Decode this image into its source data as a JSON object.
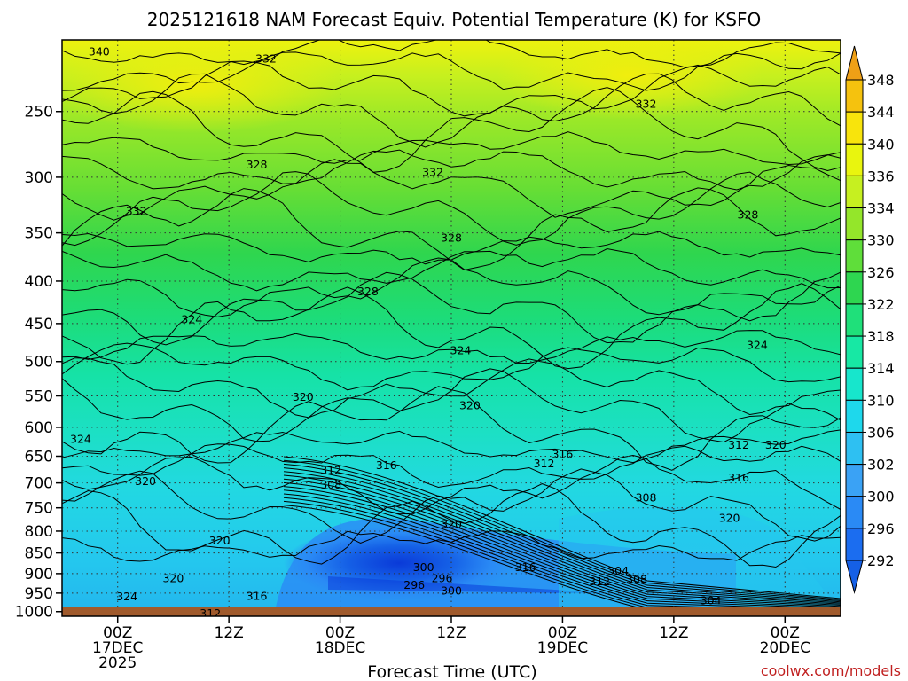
{
  "chart_data": {
    "type": "heatmap",
    "title": "2025121618 NAM Forecast Equiv. Potential Temperature (K) for KSFO",
    "xlabel": "Forecast Time (UTC)",
    "ylabel": "",
    "y_axis": {
      "ticks": [
        250,
        300,
        350,
        400,
        450,
        500,
        550,
        600,
        650,
        700,
        750,
        800,
        850,
        900,
        950,
        1000
      ],
      "ylim": [
        1013,
        205
      ],
      "scale": "log-pressure"
    },
    "x_axis": {
      "xlim": [
        "2025-12-16T18Z",
        "2025-12-20T06Z"
      ],
      "ticks": [
        {
          "x": "2025-12-17T00Z",
          "lines": [
            "00Z",
            "17DEC",
            "2025"
          ]
        },
        {
          "x": "2025-12-17T12Z",
          "lines": [
            "12Z"
          ]
        },
        {
          "x": "2025-12-18T00Z",
          "lines": [
            "00Z",
            "18DEC"
          ]
        },
        {
          "x": "2025-12-18T12Z",
          "lines": [
            "12Z"
          ]
        },
        {
          "x": "2025-12-19T00Z",
          "lines": [
            "00Z",
            "19DEC"
          ]
        },
        {
          "x": "2025-12-19T12Z",
          "lines": [
            "12Z"
          ]
        },
        {
          "x": "2025-12-20T00Z",
          "lines": [
            "00Z",
            "20DEC"
          ]
        }
      ]
    },
    "grid": "dotted",
    "colorbar": {
      "levels": [
        292,
        296,
        300,
        302,
        306,
        310,
        314,
        318,
        322,
        326,
        330,
        334,
        336,
        340,
        344,
        348
      ],
      "colors": [
        "#1560e6",
        "#1b6df0",
        "#2a8af5",
        "#3aa2f5",
        "#2ec0f2",
        "#1ed8ec",
        "#17e6cc",
        "#17e8a4",
        "#1fe07a",
        "#2ed650",
        "#5fde3a",
        "#94e62a",
        "#c6f020",
        "#e9f50e",
        "#f8e40c",
        "#f5c20e",
        "#efa016"
      ]
    },
    "contour_labels": [
      {
        "x": "2025-12-16T22Z",
        "p": 212,
        "text": "340"
      },
      {
        "x": "2025-12-17T16Z",
        "p": 216,
        "text": "332"
      },
      {
        "x": "2025-12-18T10Z",
        "p": 296,
        "text": "332"
      },
      {
        "x": "2025-12-19T09Z",
        "p": 245,
        "text": "332"
      },
      {
        "x": "2025-12-17T02Z",
        "p": 330,
        "text": "332"
      },
      {
        "x": "2025-12-17T15Z",
        "p": 290,
        "text": "328"
      },
      {
        "x": "2025-12-18T12Z",
        "p": 355,
        "text": "328"
      },
      {
        "x": "2025-12-18T03Z",
        "p": 412,
        "text": "328"
      },
      {
        "x": "2025-12-19T20Z",
        "p": 333,
        "text": "328"
      },
      {
        "x": "2025-12-17T08Z",
        "p": 445,
        "text": "324"
      },
      {
        "x": "2025-12-18T13Z",
        "p": 485,
        "text": "324"
      },
      {
        "x": "2025-12-19T21Z",
        "p": 478,
        "text": "324"
      },
      {
        "x": "2025-12-16T20Z",
        "p": 620,
        "text": "324"
      },
      {
        "x": "2025-12-17T20Z",
        "p": 552,
        "text": "320"
      },
      {
        "x": "2025-12-18T14Z",
        "p": 565,
        "text": "320"
      },
      {
        "x": "2025-12-17T03Z",
        "p": 697,
        "text": "320"
      },
      {
        "x": "2025-12-17T11Z",
        "p": 822,
        "text": "320"
      },
      {
        "x": "2025-12-17T06Z",
        "p": 912,
        "text": "320"
      },
      {
        "x": "2025-12-17T01Z",
        "p": 960,
        "text": "324"
      },
      {
        "x": "2025-12-17T10Z",
        "p": 1005,
        "text": "312"
      },
      {
        "x": "2025-12-17T15Z",
        "p": 958,
        "text": "316"
      },
      {
        "x": "2025-12-17T23Z",
        "p": 676,
        "text": "312"
      },
      {
        "x": "2025-12-17T23Z",
        "p": 704,
        "text": "308"
      },
      {
        "x": "2025-12-18T05Z",
        "p": 667,
        "text": "316"
      },
      {
        "x": "2025-12-18T09Z",
        "p": 885,
        "text": "300"
      },
      {
        "x": "2025-12-18T08Z",
        "p": 930,
        "text": "296"
      },
      {
        "x": "2025-12-18T11Z",
        "p": 912,
        "text": "296"
      },
      {
        "x": "2025-12-18T12Z",
        "p": 945,
        "text": "300"
      },
      {
        "x": "2025-12-18T12Z",
        "p": 785,
        "text": "320"
      },
      {
        "x": "2025-12-18T20Z",
        "p": 885,
        "text": "316"
      },
      {
        "x": "2025-12-18T22Z",
        "p": 664,
        "text": "312"
      },
      {
        "x": "2025-12-19T00Z",
        "p": 647,
        "text": "316"
      },
      {
        "x": "2025-12-19T09Z",
        "p": 730,
        "text": "308"
      },
      {
        "x": "2025-12-19T06Z",
        "p": 894,
        "text": "304"
      },
      {
        "x": "2025-12-19T04Z",
        "p": 920,
        "text": "312"
      },
      {
        "x": "2025-12-19T08Z",
        "p": 915,
        "text": "308"
      },
      {
        "x": "2025-12-19T16Z",
        "p": 970,
        "text": "304"
      },
      {
        "x": "2025-12-19T19Z",
        "p": 630,
        "text": "312"
      },
      {
        "x": "2025-12-19T23Z",
        "p": 630,
        "text": "320"
      },
      {
        "x": "2025-12-19T19Z",
        "p": 690,
        "text": "316"
      },
      {
        "x": "2025-12-19T18Z",
        "p": 772,
        "text": "320"
      }
    ],
    "terrain_color": "#a05a2c"
  },
  "credit": {
    "text": "coolwx.com/models",
    "color": "#c02020"
  }
}
